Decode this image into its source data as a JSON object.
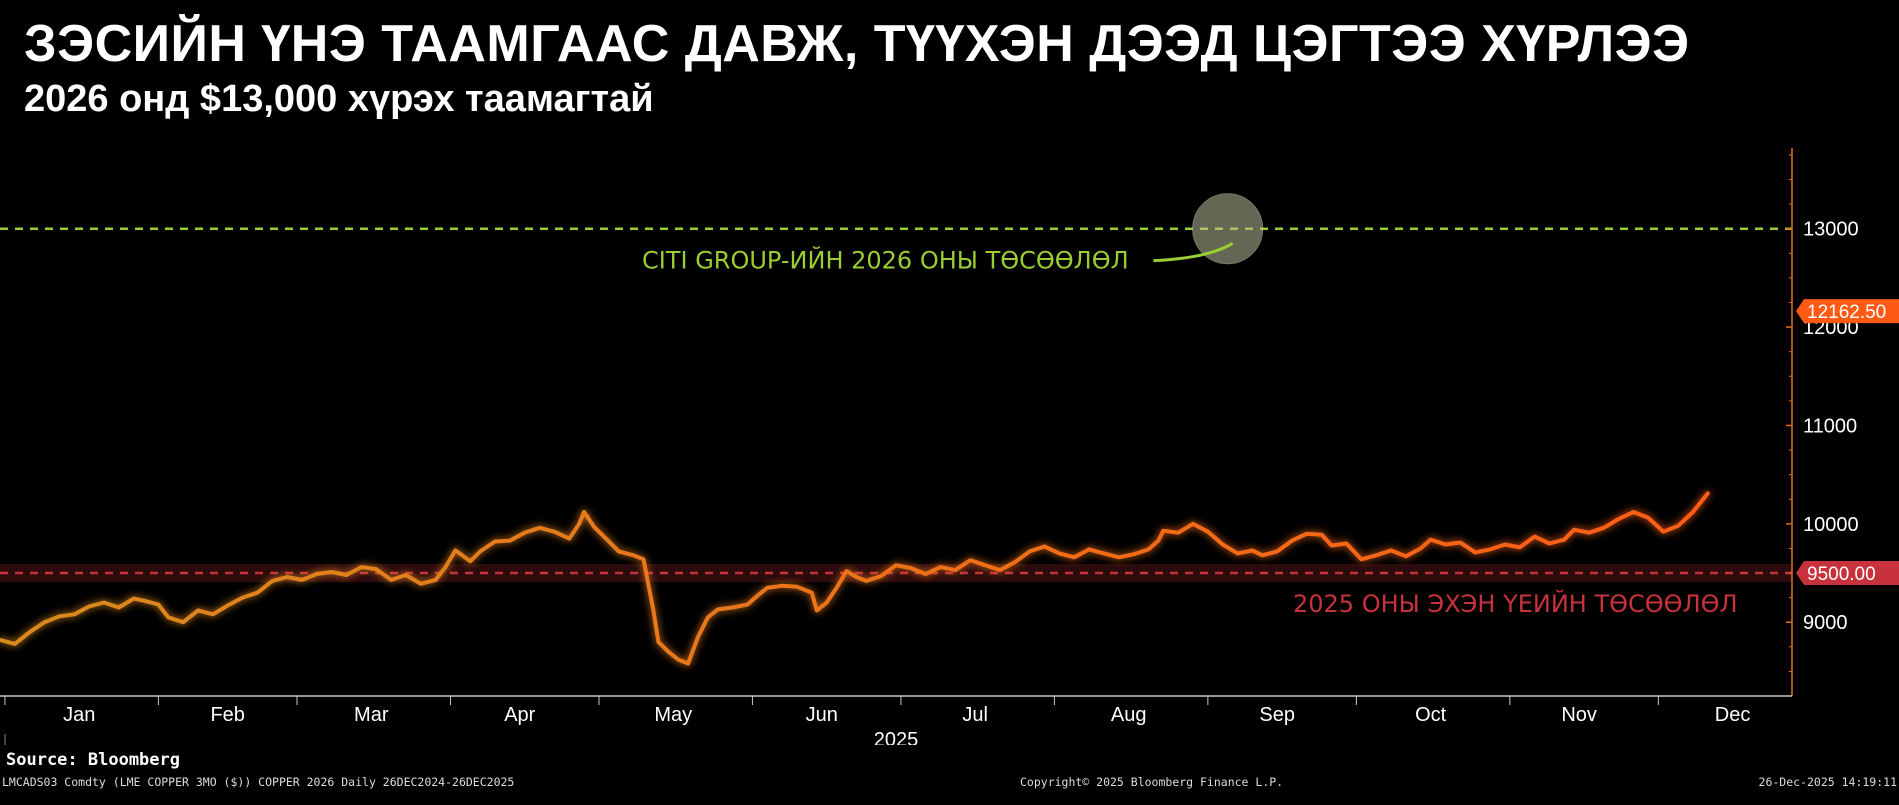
{
  "header": {
    "title": "ЗЭСИЙН ҮНЭ ТААМГААС ДАВЖ, ТҮҮХЭН ДЭЭД ЦЭГТЭЭ ХҮРЛЭЭ",
    "subtitle": "2026 онд $13,000 хүрэх таамагтай"
  },
  "footer": {
    "source": "Source: Bloomberg",
    "ticker": "LMCADS03 Comdty (LME COPPER    3MO ($)) COPPER 2026 Daily 26DEC2024-26DEC2025",
    "copyright": "Copyright© 2025 Bloomberg Finance L.P.",
    "timestamp": "26-Dec-2025 14:19:11"
  },
  "colors": {
    "background": "#000000",
    "line_start": "#d98a1e",
    "line_end": "#ff5a14",
    "forecast_high": "#9acd32",
    "forecast_low": "#c8323c",
    "last_price_tag": "#ff5a14",
    "axis": "#e07020"
  },
  "chart_data": {
    "type": "line",
    "x_axis_year": "2025",
    "months": [
      "Jan",
      "Feb",
      "Mar",
      "Apr",
      "May",
      "Jun",
      "Jul",
      "Aug",
      "Sep",
      "Oct",
      "Nov",
      "Dec"
    ],
    "y_ticks": [
      9000,
      10000,
      11000,
      12000,
      13000
    ],
    "ylim": [
      8250,
      13800
    ],
    "xlim_days": [
      -1,
      361
    ],
    "grid": false,
    "last_price": {
      "value": 12162.5,
      "label": "12162.50"
    },
    "reference_lines": [
      {
        "value": 13000,
        "label": "CITI GROUP-ИЙН 2026 ОНЫ ТӨСӨӨЛӨЛ",
        "style": "dashed",
        "color": "#9acd32"
      },
      {
        "value": 9500,
        "label": "2025 ОНЫ ЭХЭН ҮЕИЙН ТӨСӨӨЛӨЛ",
        "style": "dashed",
        "color": "#c8323c",
        "tag": "9500.00"
      }
    ],
    "series": [
      {
        "values": [
          [
            -1,
            8820
          ],
          [
            2,
            8780
          ],
          [
            5,
            8900
          ],
          [
            8,
            9000
          ],
          [
            11,
            9060
          ],
          [
            14,
            9080
          ],
          [
            17,
            9160
          ],
          [
            20,
            9200
          ],
          [
            23,
            9150
          ],
          [
            26,
            9240
          ],
          [
            28,
            9220
          ],
          [
            31,
            9180
          ],
          [
            33,
            9050
          ],
          [
            36,
            9000
          ],
          [
            39,
            9120
          ],
          [
            42,
            9080
          ],
          [
            45,
            9170
          ],
          [
            48,
            9250
          ],
          [
            51,
            9300
          ],
          [
            54,
            9420
          ],
          [
            57,
            9460
          ],
          [
            60,
            9430
          ],
          [
            63,
            9490
          ],
          [
            66,
            9510
          ],
          [
            69,
            9480
          ],
          [
            72,
            9560
          ],
          [
            75,
            9540
          ],
          [
            78,
            9430
          ],
          [
            81,
            9480
          ],
          [
            84,
            9390
          ],
          [
            87,
            9430
          ],
          [
            89,
            9560
          ],
          [
            91,
            9730
          ],
          [
            94,
            9620
          ],
          [
            96,
            9720
          ],
          [
            99,
            9820
          ],
          [
            102,
            9830
          ],
          [
            105,
            9910
          ],
          [
            108,
            9960
          ],
          [
            111,
            9920
          ],
          [
            114,
            9850
          ],
          [
            116,
            10000
          ],
          [
            117,
            10120
          ],
          [
            119,
            9970
          ],
          [
            121,
            9870
          ],
          [
            124,
            9720
          ],
          [
            127,
            9680
          ],
          [
            129,
            9640
          ],
          [
            131,
            9120
          ],
          [
            132,
            8800
          ],
          [
            134,
            8700
          ],
          [
            136,
            8620
          ],
          [
            138,
            8580
          ],
          [
            140,
            8850
          ],
          [
            142,
            9050
          ],
          [
            144,
            9130
          ],
          [
            147,
            9150
          ],
          [
            150,
            9180
          ],
          [
            152,
            9270
          ],
          [
            154,
            9350
          ],
          [
            157,
            9370
          ],
          [
            160,
            9360
          ],
          [
            163,
            9300
          ],
          [
            164,
            9120
          ],
          [
            166,
            9200
          ],
          [
            168,
            9350
          ],
          [
            170,
            9520
          ],
          [
            172,
            9460
          ],
          [
            174,
            9420
          ],
          [
            177,
            9470
          ],
          [
            180,
            9580
          ],
          [
            183,
            9550
          ],
          [
            186,
            9490
          ],
          [
            189,
            9560
          ],
          [
            192,
            9530
          ],
          [
            195,
            9630
          ],
          [
            198,
            9580
          ],
          [
            201,
            9530
          ],
          [
            204,
            9610
          ],
          [
            207,
            9720
          ],
          [
            210,
            9770
          ],
          [
            213,
            9700
          ],
          [
            216,
            9660
          ],
          [
            219,
            9740
          ],
          [
            222,
            9700
          ],
          [
            225,
            9660
          ],
          [
            228,
            9690
          ],
          [
            231,
            9740
          ],
          [
            233,
            9830
          ],
          [
            234,
            9930
          ],
          [
            237,
            9910
          ],
          [
            240,
            10000
          ],
          [
            243,
            9920
          ],
          [
            246,
            9790
          ],
          [
            249,
            9700
          ],
          [
            252,
            9730
          ],
          [
            254,
            9680
          ],
          [
            257,
            9720
          ],
          [
            260,
            9830
          ],
          [
            263,
            9900
          ],
          [
            266,
            9890
          ],
          [
            268,
            9780
          ],
          [
            271,
            9800
          ],
          [
            274,
            9640
          ],
          [
            277,
            9680
          ],
          [
            280,
            9730
          ],
          [
            283,
            9670
          ],
          [
            286,
            9750
          ],
          [
            288,
            9840
          ],
          [
            291,
            9790
          ],
          [
            294,
            9810
          ],
          [
            297,
            9710
          ],
          [
            300,
            9740
          ],
          [
            303,
            9790
          ],
          [
            306,
            9760
          ],
          [
            309,
            9870
          ],
          [
            312,
            9800
          ],
          [
            315,
            9840
          ],
          [
            317,
            9940
          ],
          [
            320,
            9910
          ],
          [
            323,
            9960
          ],
          [
            326,
            10050
          ],
          [
            329,
            10120
          ],
          [
            332,
            10060
          ],
          [
            335,
            9920
          ],
          [
            338,
            9980
          ],
          [
            341,
            10120
          ],
          [
            344,
            10310
          ]
        ]
      }
    ]
  }
}
